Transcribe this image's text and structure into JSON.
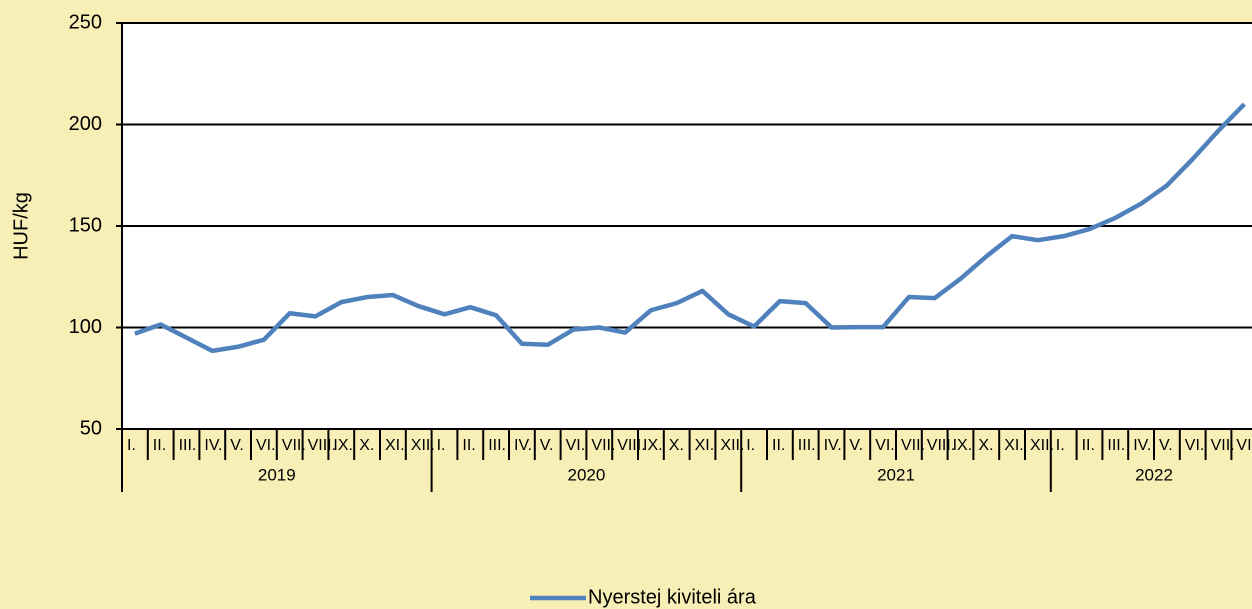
{
  "chart_data": {
    "type": "line",
    "y_label": "HUF/kg",
    "categories": [
      "I.",
      "II.",
      "III.",
      "IV.",
      "V.",
      "VI.",
      "VII.",
      "VIII.",
      "IX.",
      "X.",
      "XI.",
      "XII.",
      "I.",
      "II.",
      "III.",
      "IV.",
      "V.",
      "VI.",
      "VII.",
      "VIII.",
      "IX.",
      "X.",
      "XI.",
      "XII.",
      "I.",
      "II.",
      "III.",
      "IV.",
      "V.",
      "VI.",
      "VII.",
      "VIII.",
      "IX.",
      "X.",
      "XI.",
      "XII.",
      "I.",
      "II.",
      "III.",
      "IV.",
      "V.",
      "VI.",
      "VII.",
      "VIII."
    ],
    "x_groups": [
      "2019",
      "2020",
      "2021",
      "2022"
    ],
    "series": [
      {
        "name": "Nyerstej kiviteli ára",
        "color": "#4f81bd",
        "values": [
          97,
          101.5,
          95,
          88.5,
          90.5,
          94,
          107,
          105.5,
          112.5,
          115,
          116,
          110.5,
          106.5,
          110,
          106,
          92,
          91.5,
          99,
          100,
          97.5,
          108.5,
          112,
          118,
          106.5,
          100.5,
          113,
          112,
          100,
          100.2,
          100.2,
          115,
          114.5,
          124,
          135,
          145,
          143,
          145,
          148.5,
          154,
          161,
          170,
          183,
          197,
          210
        ]
      }
    ],
    "ylim": [
      50,
      250
    ],
    "yticks": [
      50,
      100,
      150,
      200,
      250
    ],
    "grid": true,
    "legend": "bottom"
  }
}
